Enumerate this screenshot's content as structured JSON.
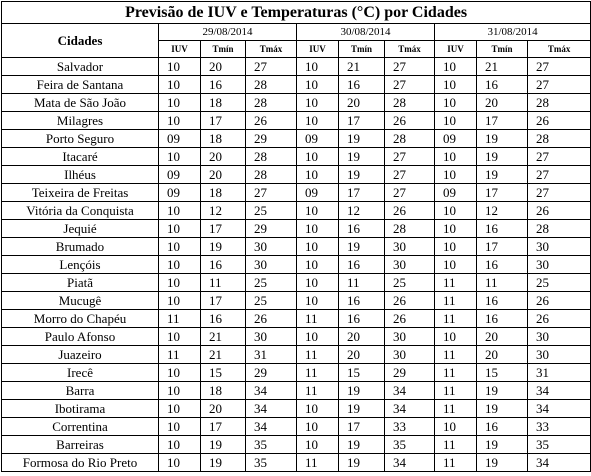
{
  "table": {
    "title": "Previsão de IUV e Temperaturas (°C) por Cidades",
    "city_header": "Cidades",
    "dates": [
      {
        "date": "29/08/2014",
        "columns": [
          "IUV",
          "Tmín",
          "Tmáx"
        ]
      },
      {
        "date": "30/08/2014",
        "columns": [
          "IUV",
          "Tmín",
          "Tmáx"
        ]
      },
      {
        "date": "31/08/2014",
        "columns": [
          "IUV",
          "Tmín",
          "Tmáx"
        ]
      }
    ],
    "rows": [
      [
        "Salvador",
        "10",
        "20",
        "27",
        "10",
        "21",
        "27",
        "10",
        "21",
        "27"
      ],
      [
        "Feira de Santana",
        "10",
        "16",
        "28",
        "10",
        "16",
        "27",
        "10",
        "16",
        "27"
      ],
      [
        "Mata de São João",
        "10",
        "18",
        "28",
        "10",
        "20",
        "28",
        "10",
        "20",
        "28"
      ],
      [
        "Milagres",
        "10",
        "17",
        "26",
        "10",
        "17",
        "26",
        "10",
        "17",
        "26"
      ],
      [
        "Porto Seguro",
        "09",
        "18",
        "29",
        "09",
        "19",
        "28",
        "09",
        "19",
        "28"
      ],
      [
        "Itacaré",
        "10",
        "20",
        "28",
        "10",
        "19",
        "27",
        "10",
        "19",
        "27"
      ],
      [
        "Ilhéus",
        "09",
        "20",
        "28",
        "10",
        "19",
        "27",
        "10",
        "19",
        "27"
      ],
      [
        "Teixeira de Freitas",
        "09",
        "18",
        "27",
        "09",
        "17",
        "27",
        "09",
        "17",
        "27"
      ],
      [
        "Vitória da Conquista",
        "10",
        "12",
        "25",
        "10",
        "12",
        "26",
        "10",
        "12",
        "26"
      ],
      [
        "Jequié",
        "10",
        "17",
        "29",
        "10",
        "16",
        "28",
        "10",
        "16",
        "28"
      ],
      [
        "Brumado",
        "10",
        "19",
        "30",
        "10",
        "19",
        "30",
        "10",
        "17",
        "30"
      ],
      [
        "Lençóis",
        "10",
        "16",
        "30",
        "10",
        "16",
        "30",
        "10",
        "16",
        "30"
      ],
      [
        "Piatã",
        "10",
        "11",
        "25",
        "10",
        "11",
        "25",
        "11",
        "11",
        "25"
      ],
      [
        "Mucugê",
        "10",
        "17",
        "25",
        "10",
        "16",
        "26",
        "11",
        "16",
        "26"
      ],
      [
        "Morro do Chapéu",
        "11",
        "16",
        "26",
        "11",
        "16",
        "26",
        "11",
        "16",
        "26"
      ],
      [
        "Paulo Afonso",
        "10",
        "21",
        "30",
        "10",
        "20",
        "30",
        "10",
        "20",
        "30"
      ],
      [
        "Juazeiro",
        "11",
        "21",
        "31",
        "11",
        "20",
        "30",
        "11",
        "20",
        "30"
      ],
      [
        "Irecê",
        "10",
        "15",
        "29",
        "11",
        "15",
        "29",
        "11",
        "15",
        "31"
      ],
      [
        "Barra",
        "10",
        "18",
        "34",
        "11",
        "19",
        "34",
        "11",
        "19",
        "34"
      ],
      [
        "Ibotirama",
        "10",
        "20",
        "34",
        "10",
        "19",
        "34",
        "11",
        "19",
        "34"
      ],
      [
        "Correntina",
        "10",
        "17",
        "34",
        "10",
        "17",
        "33",
        "10",
        "16",
        "33"
      ],
      [
        "Barreiras",
        "10",
        "19",
        "35",
        "10",
        "19",
        "35",
        "11",
        "19",
        "35"
      ],
      [
        "Formosa do Rio Preto",
        "10",
        "19",
        "35",
        "11",
        "19",
        "34",
        "11",
        "19",
        "34"
      ]
    ]
  }
}
